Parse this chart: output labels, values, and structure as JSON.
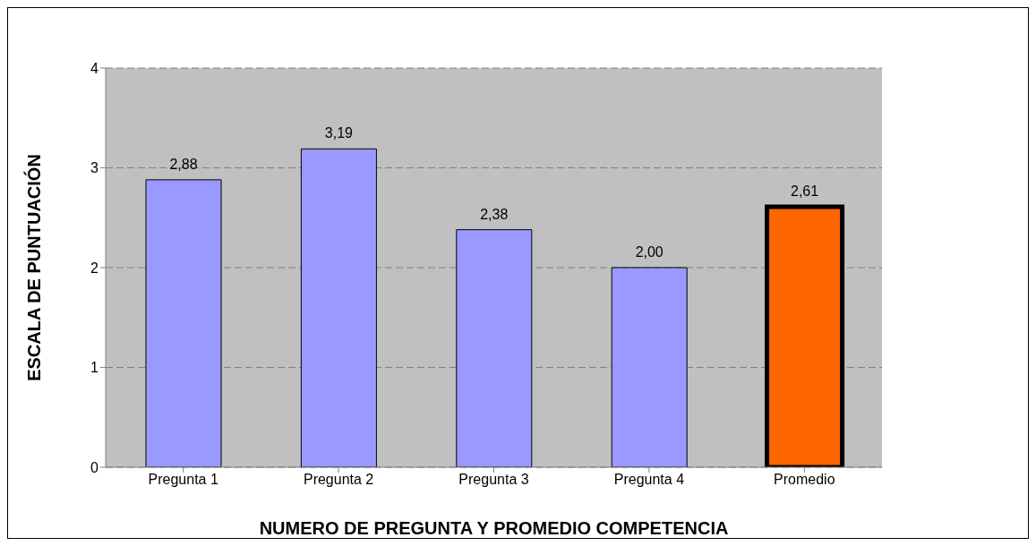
{
  "chart_data": {
    "type": "bar",
    "xlabel": "NUMERO DE PREGUNTA Y PROMEDIO COMPETENCIA",
    "ylabel": "ESCALA DE PUNTUACIÓN",
    "categories": [
      "Pregunta 1",
      "Pregunta 2",
      "Pregunta 3",
      "Pregunta 4",
      "Promedio"
    ],
    "values": [
      2.88,
      3.19,
      2.38,
      2.0,
      2.61
    ],
    "colors": [
      "#9999ff",
      "#9999ff",
      "#9999ff",
      "#9999ff",
      "#ff6600"
    ],
    "value_labels": [
      "2,88",
      "3,19",
      "2,38",
      "2,00",
      "2,61"
    ],
    "ylim": [
      0,
      4
    ],
    "yticks": [
      0,
      1,
      2,
      3,
      4
    ],
    "grid": "y",
    "legend": false
  }
}
